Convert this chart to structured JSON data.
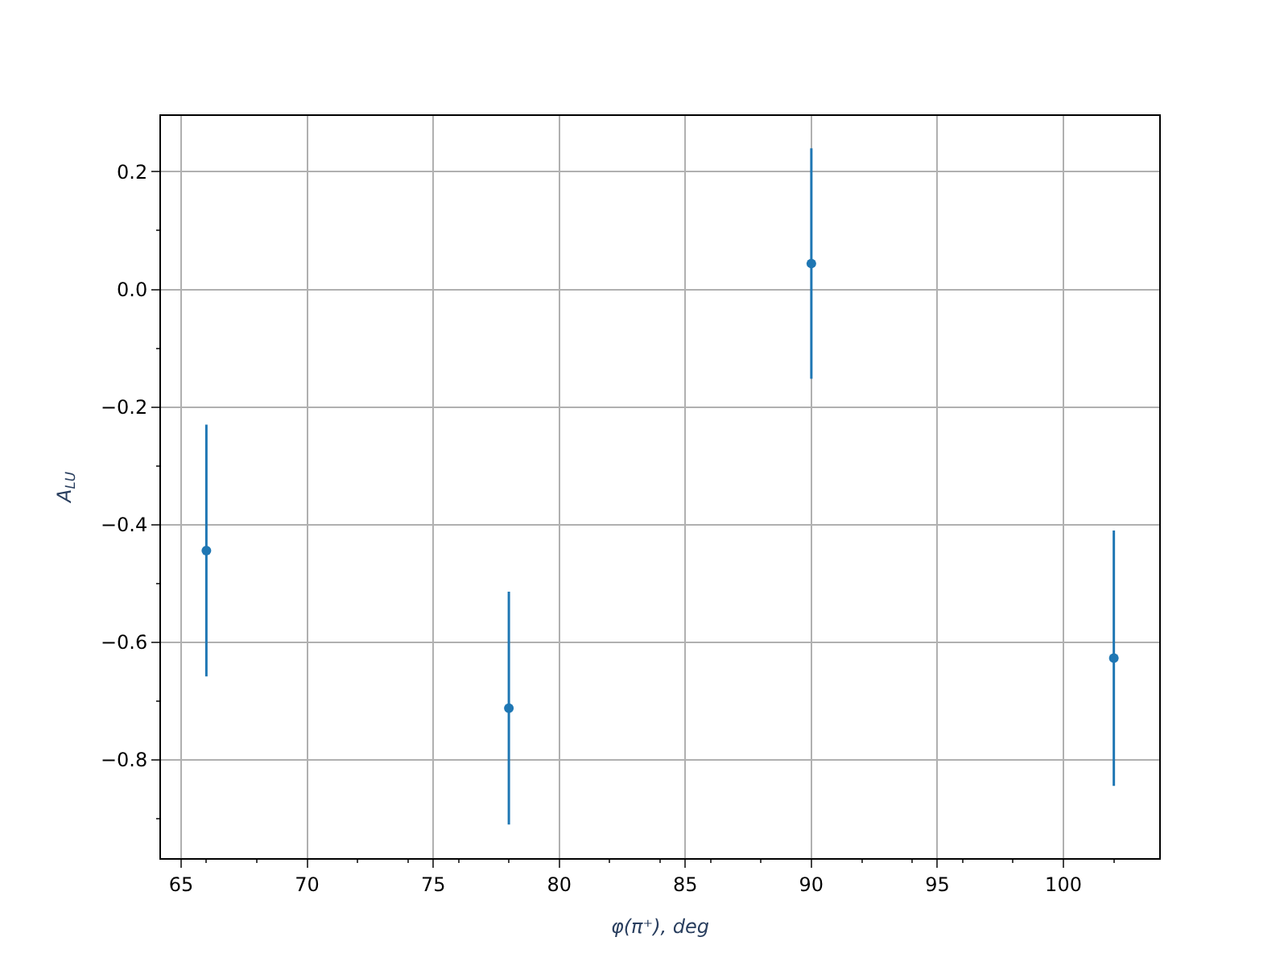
{
  "chart_data": {
    "type": "scatter",
    "xlabel": "φ(π⁺), deg",
    "ylabel": "A$_{LU}$",
    "x": [
      66,
      78,
      90,
      102
    ],
    "series": [
      {
        "color": "#1f77b4",
        "values": [
          -0.444,
          -0.712,
          0.044,
          -0.627
        ],
        "errors": [
          0.214,
          0.198,
          0.196,
          0.217
        ]
      }
    ],
    "xlim": [
      64.2,
      103.8
    ],
    "ylim": [
      -0.967,
      0.295
    ],
    "xticks": [
      65,
      70,
      75,
      80,
      85,
      90,
      95,
      100
    ],
    "yticks": [
      {
        "value": -0.8,
        "label": "−0.8"
      },
      {
        "value": -0.6,
        "label": "−0.6"
      },
      {
        "value": -0.4,
        "label": "−0.4"
      },
      {
        "value": -0.2,
        "label": "−0.2"
      },
      {
        "value": 0.0,
        "label": "0.0"
      },
      {
        "value": 0.2,
        "label": "0.2"
      }
    ],
    "grid": true,
    "marker": "circle"
  }
}
